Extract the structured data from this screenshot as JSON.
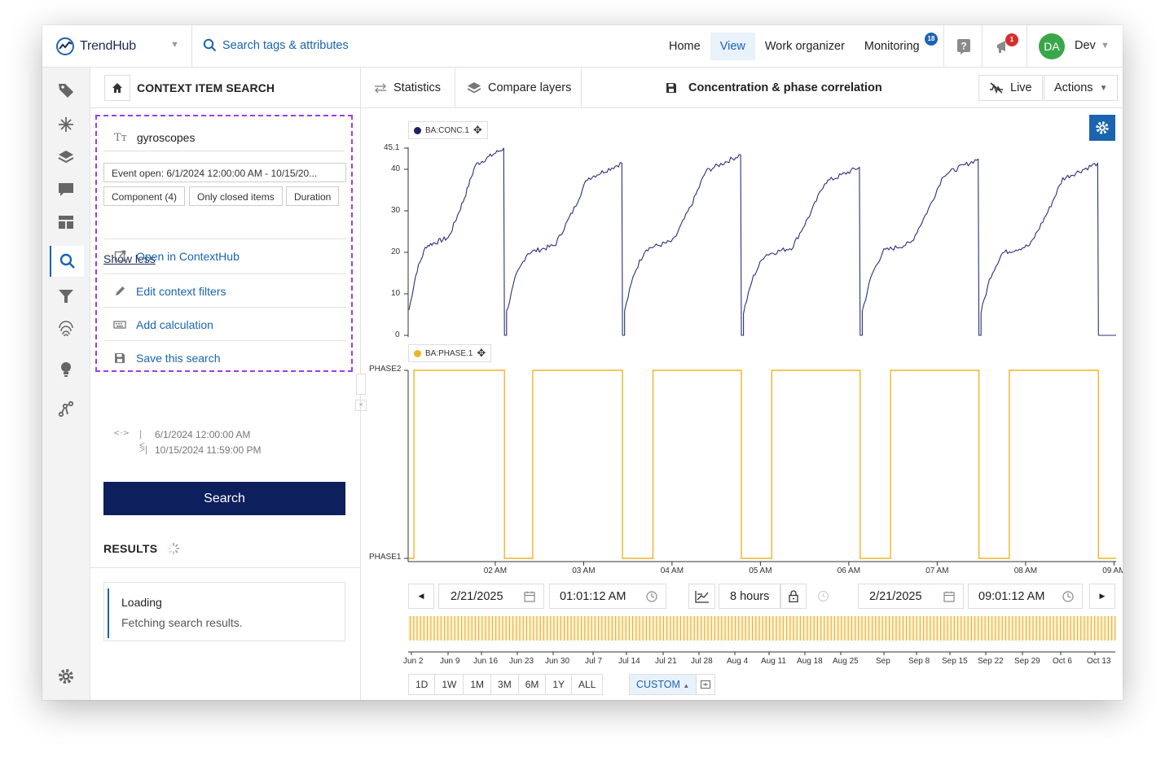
{
  "app": {
    "logo_text": "TrendHub",
    "search_tags_label": "Search tags & attributes"
  },
  "nav": {
    "home": "Home",
    "view": "View",
    "work_organizer": "Work organizer",
    "monitoring": "Monitoring",
    "monitoring_badge": "18",
    "notifications_badge": "1",
    "avatar_initials": "DA",
    "user_name": "Dev"
  },
  "panel": {
    "title": "CONTEXT ITEM SEARCH",
    "query": "gyroscopes",
    "filter_event": "Event open: 6/1/2024 12:00:00 AM - 10/15/20...",
    "filter_component": "Component (4)",
    "filter_closed": "Only closed items",
    "filter_duration": "Duration",
    "show_less": "Show less",
    "actions": {
      "open": "Open in ContextHub",
      "edit": "Edit context filters",
      "add_calc": "Add calculation",
      "save": "Save this search"
    },
    "range_start": "6/1/2024 12:00:00 AM",
    "range_end": "10/15/2024 11:59:00 PM",
    "search_button": "Search",
    "results_label": "RESULTS",
    "loading_title": "Loading",
    "loading_sub": "Fetching search results."
  },
  "toolbar": {
    "statistics": "Statistics",
    "compare_layers": "Compare layers",
    "view_title": "Concentration & phase correlation",
    "live": "Live",
    "actions": "Actions"
  },
  "colors": {
    "accent": "#1a64b0",
    "navy": "#0d1f5c",
    "conc": "#2b2f7a",
    "phase": "#f0b429",
    "purple_dash": "#9a3ee8",
    "avatar": "#3aa64a",
    "badge_red": "#d32f2f"
  },
  "chart_data": {
    "type": "line",
    "charts": [
      {
        "tag": "BA:CONC.1",
        "color": "#2b2f7a",
        "ylim": [
          0,
          45.1
        ],
        "yticks": [
          "0",
          "10",
          "20",
          "30",
          "40",
          "45.1"
        ],
        "cycle_shape": [
          [
            0,
            6
          ],
          [
            0.08,
            15
          ],
          [
            0.18,
            21
          ],
          [
            0.42,
            23
          ],
          [
            0.58,
            32
          ],
          [
            0.7,
            40
          ],
          [
            0.85,
            42
          ],
          [
            1.0,
            44
          ]
        ],
        "cycles": [
          {
            "start": 0.0,
            "end": 0.135,
            "peak": 45.1
          },
          {
            "start": 0.138,
            "end": 0.302,
            "peak": 41.5
          },
          {
            "start": 0.305,
            "end": 0.47,
            "peak": 43.5
          },
          {
            "start": 0.473,
            "end": 0.638,
            "peak": 40.5
          },
          {
            "start": 0.641,
            "end": 0.806,
            "peak": 42.5
          },
          {
            "start": 0.809,
            "end": 0.975,
            "peak": 41.5
          }
        ],
        "trailing_zero_end": 1.0
      },
      {
        "tag": "BA:PHASE.1",
        "color": "#f0b429",
        "yticks": [
          "PHASE1",
          "PHASE2"
        ],
        "phase2_segments": [
          [
            0.007,
            0.135
          ],
          [
            0.175,
            0.302
          ],
          [
            0.345,
            0.47
          ],
          [
            0.513,
            0.638
          ],
          [
            0.681,
            0.806
          ],
          [
            0.849,
            0.975
          ]
        ]
      }
    ],
    "x_ticks": [
      "02 AM",
      "03 AM",
      "04 AM",
      "05 AM",
      "06 AM",
      "07 AM",
      "08 AM",
      "09 AM"
    ],
    "x_tick_fractions": [
      0.122,
      0.247,
      0.372,
      0.497,
      0.622,
      0.747,
      0.872,
      0.997
    ]
  },
  "time_controls": {
    "start_date": "2/21/2025",
    "start_time": "01:01:12 AM",
    "duration": "8 hours",
    "end_date": "2/21/2025",
    "end_time": "09:01:12 AM"
  },
  "navigator": {
    "labels": [
      "Jun 2",
      "Jun 9",
      "Jun 16",
      "Jun 23",
      "Jun 30",
      "Jul 7",
      "Jul 14",
      "Jul 21",
      "Jul 28",
      "Aug 4",
      "Aug 11",
      "Aug 18",
      "Aug 25",
      "Sep",
      "Sep 8",
      "Sep 15",
      "Sep 22",
      "Sep 29",
      "Oct 6",
      "Oct 13"
    ],
    "ranges": [
      "1D",
      "1W",
      "1M",
      "3M",
      "6M",
      "1Y",
      "ALL"
    ],
    "custom": "CUSTOM"
  }
}
